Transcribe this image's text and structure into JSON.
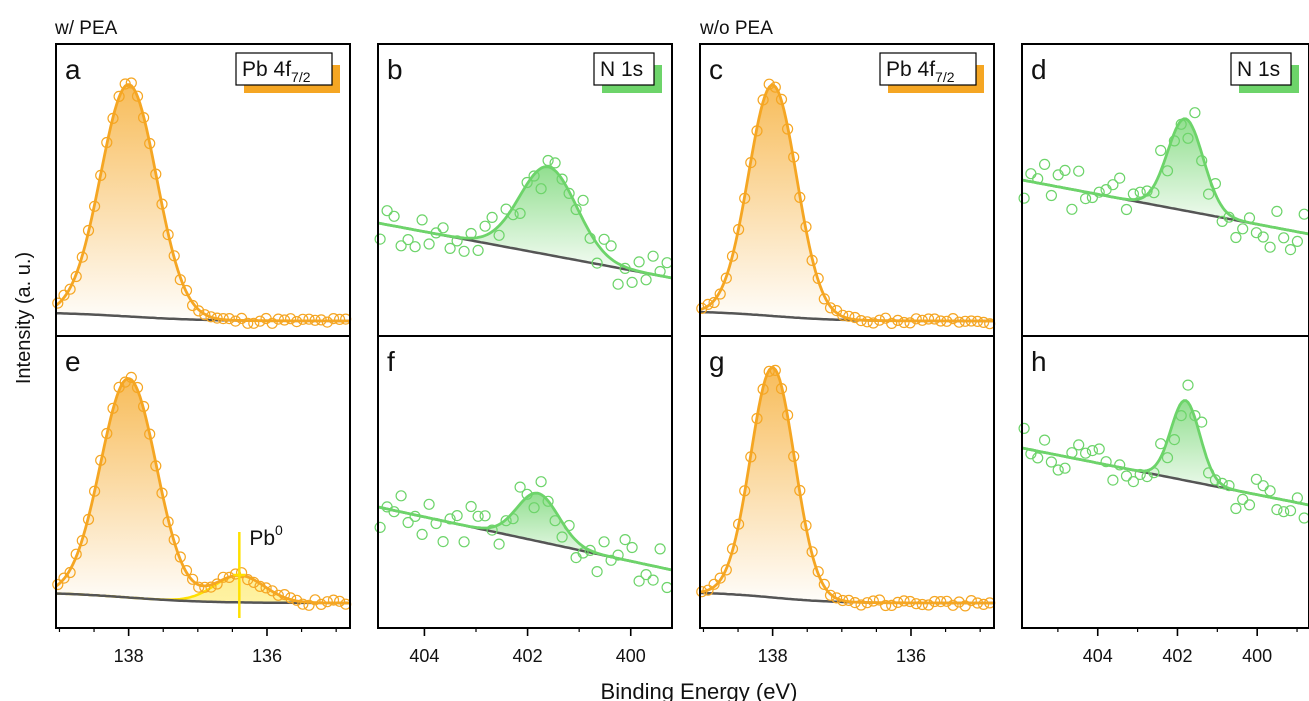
{
  "figure": {
    "group_labels": [
      "w/ PEA",
      "w/o PEA"
    ],
    "y_axis_label": "Intensity (a. u.)",
    "x_axis_label": "Binding Energy (eV)",
    "colors": {
      "pb": "#F5A623",
      "n": "#6DD46A",
      "pb0": "#FFE000",
      "background": "#555555"
    }
  },
  "chart_data": [
    {
      "panel": "a",
      "type": "scatter",
      "species": "Pb",
      "tag_main": "Pb 4f",
      "tag_sub": "7/2",
      "xlim": [
        139.05,
        134.8
      ],
      "xticks": [
        138,
        136
      ],
      "peaks": [
        {
          "center": 138.0,
          "fwhm": 0.95,
          "height": 232
        }
      ],
      "bg": {
        "type": "step",
        "left": 6,
        "right": -3
      }
    },
    {
      "panel": "b",
      "type": "scatter",
      "species": "N",
      "tag_main": "N 1s",
      "tag_sub": "",
      "xlim": [
        404.9,
        399.2
      ],
      "xticks": [
        404,
        402,
        400
      ],
      "peaks": [
        {
          "center": 401.6,
          "fwhm": 1.3,
          "height": 88
        }
      ],
      "bg": {
        "type": "linear",
        "left": 95,
        "right": 40
      }
    },
    {
      "panel": "c",
      "type": "scatter",
      "species": "Pb",
      "tag_main": "Pb 4f",
      "tag_sub": "7/2",
      "xlim": [
        139.05,
        134.8
      ],
      "xticks": [
        138,
        136
      ],
      "peaks": [
        {
          "center": 138.0,
          "fwhm": 0.82,
          "height": 231
        }
      ],
      "bg": {
        "type": "step",
        "left": 7,
        "right": -3
      }
    },
    {
      "panel": "d",
      "type": "scatter",
      "species": "N",
      "tag_main": "N 1s",
      "tag_sub": "",
      "xlim": [
        405.9,
        398.7
      ],
      "xticks": [
        404,
        402,
        400
      ],
      "peaks": [
        {
          "center": 401.8,
          "fwhm": 1.05,
          "height": 92
        }
      ],
      "bg": {
        "type": "linear",
        "left": 138,
        "right": 84
      }
    },
    {
      "panel": "e",
      "type": "scatter",
      "species": "Pb",
      "tag_main": "",
      "tag_sub": "",
      "xlim": [
        139.05,
        134.8
      ],
      "xticks": [
        138,
        136
      ],
      "peaks": [
        {
          "center": 138.0,
          "fwhm": 0.95,
          "height": 219
        },
        {
          "center": 136.4,
          "fwhm": 0.85,
          "height": 27,
          "component": "Pb0"
        }
      ],
      "bg": {
        "type": "step",
        "left": 8,
        "right": -3
      },
      "annotation": {
        "text": "Pb",
        "sup": "0",
        "x": 136.4
      }
    },
    {
      "panel": "f",
      "type": "scatter",
      "species": "N",
      "tag_main": "",
      "tag_sub": "",
      "xlim": [
        404.9,
        399.2
      ],
      "xticks": [
        404,
        402,
        400
      ],
      "peaks": [
        {
          "center": 401.8,
          "fwhm": 0.95,
          "height": 48
        }
      ],
      "bg": {
        "type": "linear",
        "left": 93,
        "right": 30
      }
    },
    {
      "panel": "g",
      "type": "scatter",
      "species": "Pb",
      "tag_main": "",
      "tag_sub": "",
      "xlim": [
        139.05,
        134.8
      ],
      "xticks": [
        138,
        136
      ],
      "peaks": [
        {
          "center": 138.0,
          "fwhm": 0.75,
          "height": 230
        }
      ],
      "bg": {
        "type": "step",
        "left": 8,
        "right": -3
      }
    },
    {
      "panel": "h",
      "type": "scatter",
      "species": "N",
      "tag_main": "",
      "tag_sub": "",
      "xlim": [
        405.9,
        398.7
      ],
      "xticks": [
        404,
        402,
        400
      ],
      "peaks": [
        {
          "center": 401.8,
          "fwhm": 0.85,
          "height": 80
        }
      ],
      "bg": {
        "type": "linear",
        "left": 152,
        "right": 95
      }
    }
  ]
}
